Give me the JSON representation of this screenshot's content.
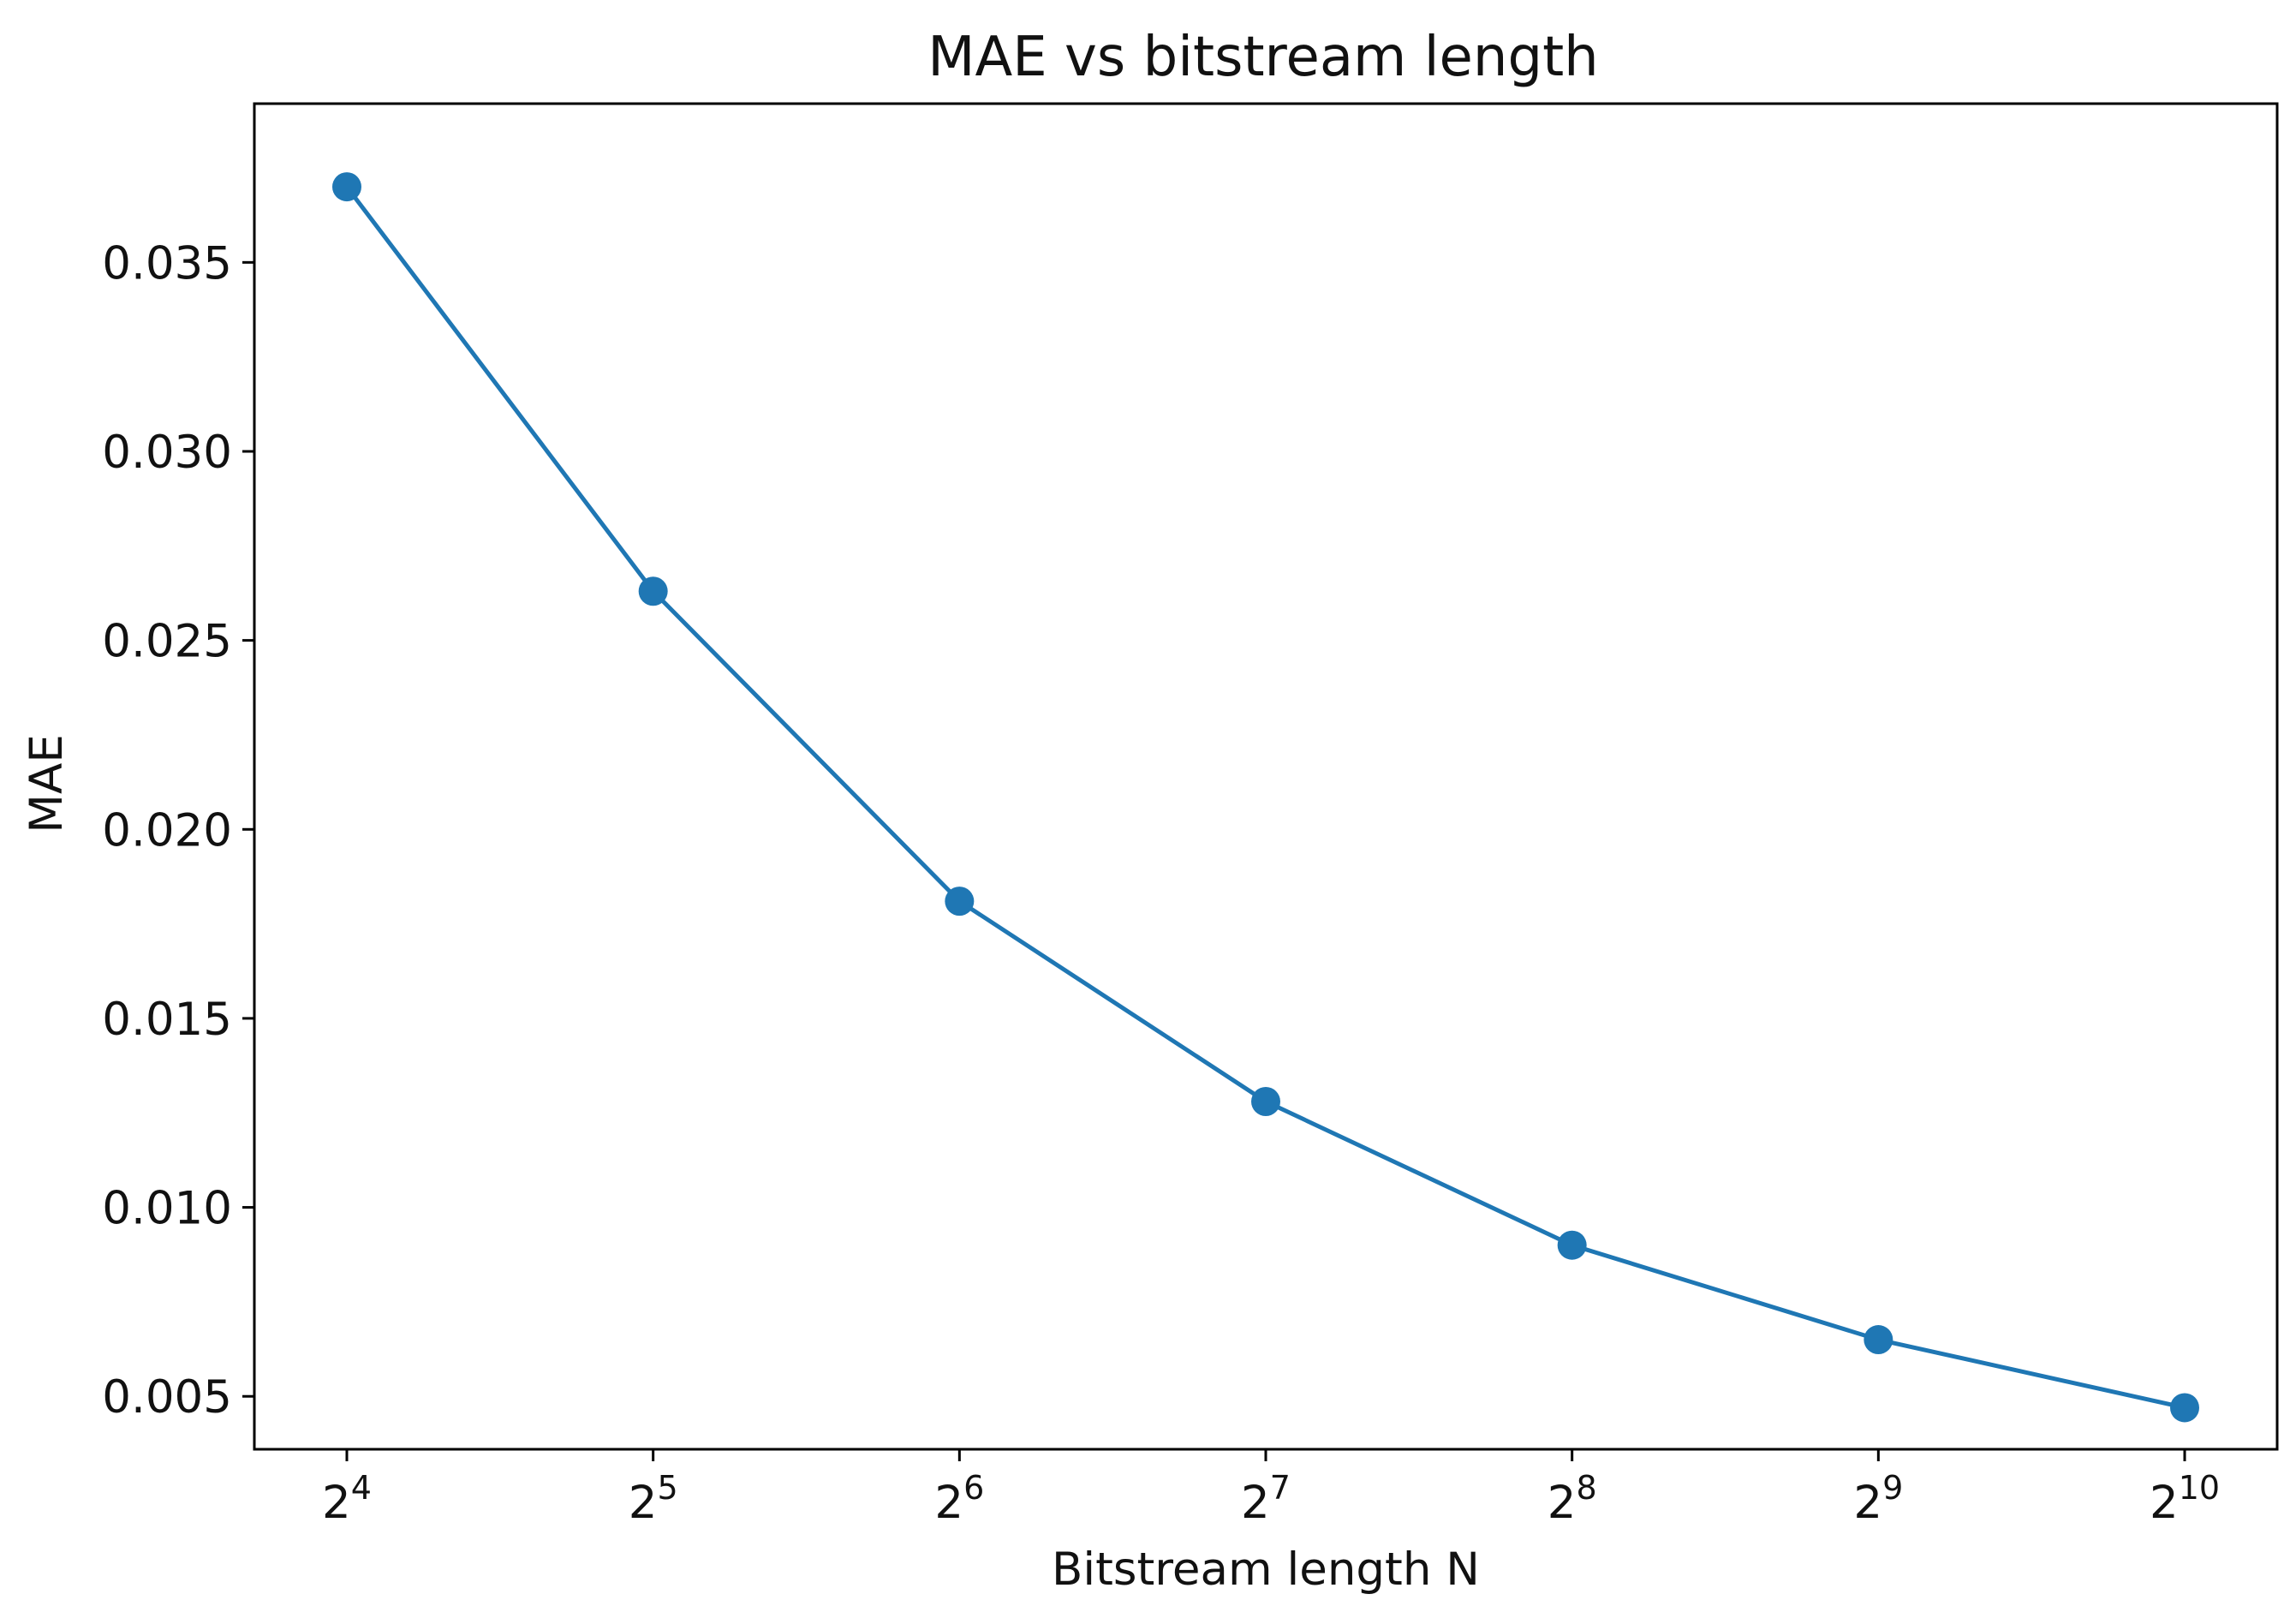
{
  "chart_data": {
    "type": "line",
    "title": "MAE vs bitstream length",
    "xlabel": "Bitstream length N",
    "ylabel": "MAE",
    "x_scale": "log2",
    "x": [
      16,
      32,
      64,
      128,
      256,
      512,
      1024
    ],
    "x_tick_labels": [
      {
        "base": "2",
        "exp": "4"
      },
      {
        "base": "2",
        "exp": "5"
      },
      {
        "base": "2",
        "exp": "6"
      },
      {
        "base": "2",
        "exp": "7"
      },
      {
        "base": "2",
        "exp": "8"
      },
      {
        "base": "2",
        "exp": "9"
      },
      {
        "base": "2",
        "exp": "10"
      }
    ],
    "y_ticks": [
      0.005,
      0.01,
      0.015,
      0.02,
      0.025,
      0.03,
      0.035
    ],
    "y_tick_labels": [
      "0.005",
      "0.010",
      "0.015",
      "0.020",
      "0.025",
      "0.030",
      "0.035"
    ],
    "ylim": [
      0.0036,
      0.0392
    ],
    "series": [
      {
        "values": [
          0.037,
          0.0263,
          0.0181,
          0.0128,
          0.009,
          0.0065,
          0.0047
        ],
        "color": "#1f77b4"
      }
    ],
    "grid": false,
    "legend": "none"
  }
}
